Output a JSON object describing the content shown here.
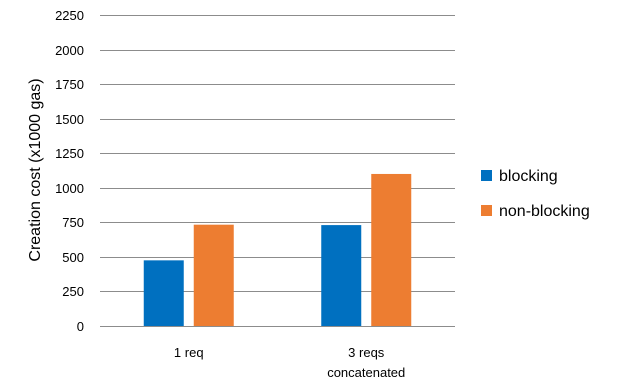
{
  "chart_data": {
    "type": "bar",
    "categories": [
      [
        "1 req"
      ],
      [
        "3 reqs",
        "concatenated"
      ]
    ],
    "series": [
      {
        "name": "blocking",
        "color": "#0070c0",
        "values": [
          475,
          730
        ]
      },
      {
        "name": "non-blocking",
        "color": "#ed7d31",
        "values": [
          733,
          1100
        ]
      }
    ],
    "ylabel": "Creation cost (x1000 gas)",
    "xlabel": "",
    "ylim": [
      0,
      2250
    ],
    "yticks": [
      0,
      250,
      500,
      750,
      1000,
      1250,
      1500,
      1750,
      2000,
      2250
    ],
    "grid": "horizontal",
    "legend_position": "right",
    "gridline_color": "#8c8c8c"
  }
}
